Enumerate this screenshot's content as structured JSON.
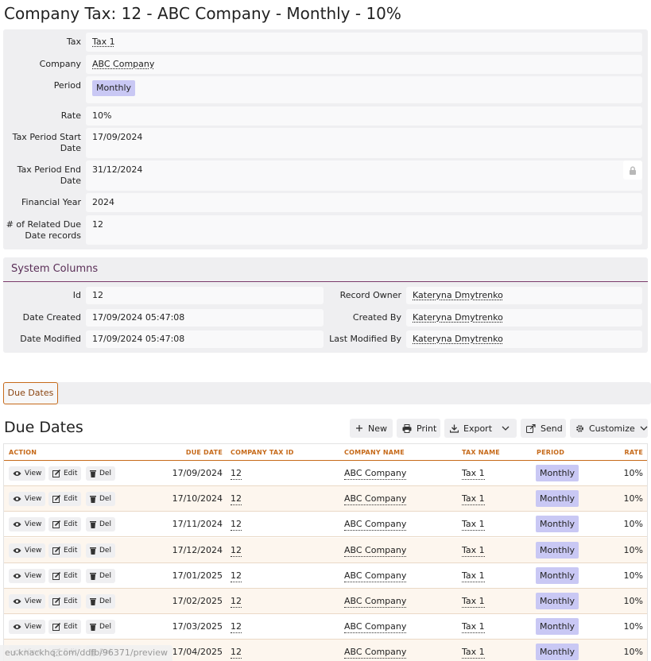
{
  "page": {
    "title": "Company Tax: 12 - ABC Company - Monthly - 10%"
  },
  "details": {
    "tax": {
      "label": "Tax",
      "value": "Tax 1"
    },
    "company": {
      "label": "Company",
      "value": "ABC Company"
    },
    "period": {
      "label": "Period",
      "value": "Monthly"
    },
    "rate": {
      "label": "Rate",
      "value": "10%"
    },
    "start": {
      "label_line1": "Tax Period Start",
      "label_line2": "Date",
      "value": "17/09/2024"
    },
    "end": {
      "label_line1": "Tax Period End",
      "label_line2": "Date",
      "value": "31/12/2024",
      "icon": "lock-icon"
    },
    "financial_year": {
      "label": "Financial Year",
      "value": "2024"
    },
    "related": {
      "label_line1": "# of Related Due",
      "label_line2": "Date records",
      "value": "12"
    }
  },
  "system_columns": {
    "title": "System Columns",
    "id": {
      "label": "Id",
      "value": "12"
    },
    "date_created": {
      "label": "Date Created",
      "value": "17/09/2024 05:47:08"
    },
    "date_modified": {
      "label": "Date Modified",
      "value": "17/09/2024 05:47:08"
    },
    "record_owner": {
      "label": "Record Owner",
      "value": "Kateryna Dmytrenko"
    },
    "created_by": {
      "label": "Created By",
      "value": "Kateryna Dmytrenko"
    },
    "last_modified_by": {
      "label": "Last Modified By",
      "value": "Kateryna Dmytrenko"
    }
  },
  "tabs": [
    {
      "label": "Due Dates",
      "active": true
    }
  ],
  "due_dates": {
    "title": "Due Dates",
    "toolbar": {
      "new": "New",
      "print": "Print",
      "export": "Export",
      "send": "Send",
      "customize": "Customize"
    },
    "columns": {
      "action": "ACTION",
      "due_date": "DUE DATE",
      "company_tax_id": "COMPANY TAX ID",
      "company_name": "COMPANY NAME",
      "tax_name": "TAX NAME",
      "period": "PERIOD",
      "rate": "RATE"
    },
    "action_labels": {
      "view": "View",
      "edit": "Edit",
      "del": "Del"
    },
    "rows": [
      {
        "due_date": "17/09/2024",
        "company_tax_id": "12",
        "company_name": "ABC Company",
        "tax_name": "Tax 1",
        "period": "Monthly",
        "rate": "10%"
      },
      {
        "due_date": "17/10/2024",
        "company_tax_id": "12",
        "company_name": "ABC Company",
        "tax_name": "Tax 1",
        "period": "Monthly",
        "rate": "10%"
      },
      {
        "due_date": "17/11/2024",
        "company_tax_id": "12",
        "company_name": "ABC Company",
        "tax_name": "Tax 1",
        "period": "Monthly",
        "rate": "10%"
      },
      {
        "due_date": "17/12/2024",
        "company_tax_id": "12",
        "company_name": "ABC Company",
        "tax_name": "Tax 1",
        "period": "Monthly",
        "rate": "10%"
      },
      {
        "due_date": "17/01/2025",
        "company_tax_id": "12",
        "company_name": "ABC Company",
        "tax_name": "Tax 1",
        "period": "Monthly",
        "rate": "10%"
      },
      {
        "due_date": "17/02/2025",
        "company_tax_id": "12",
        "company_name": "ABC Company",
        "tax_name": "Tax 1",
        "period": "Monthly",
        "rate": "10%"
      },
      {
        "due_date": "17/03/2025",
        "company_tax_id": "12",
        "company_name": "ABC Company",
        "tax_name": "Tax 1",
        "period": "Monthly",
        "rate": "10%"
      },
      {
        "due_date": "17/04/2025",
        "company_tax_id": "12",
        "company_name": "ABC Company",
        "tax_name": "Tax 1",
        "period": "Monthly",
        "rate": "10%"
      }
    ]
  },
  "status_bar": {
    "url": "eu.knackhq.com/ddfb/96371/preview"
  },
  "colors": {
    "accent": "#c66a1a",
    "chip": "#c9c8f4",
    "system_title": "#5a2e57"
  }
}
